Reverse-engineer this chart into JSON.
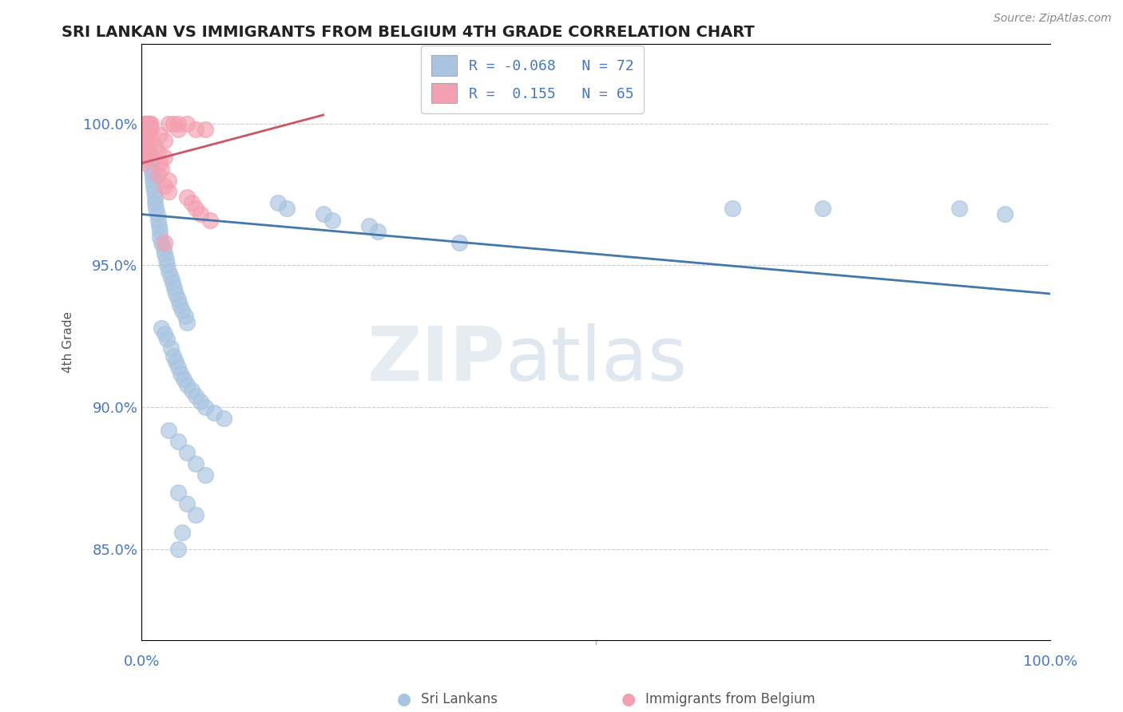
{
  "title": "SRI LANKAN VS IMMIGRANTS FROM BELGIUM 4TH GRADE CORRELATION CHART",
  "source": "Source: ZipAtlas.com",
  "ylabel": "4th Grade",
  "ytick_labels": [
    "85.0%",
    "90.0%",
    "95.0%",
    "100.0%"
  ],
  "ytick_values": [
    0.85,
    0.9,
    0.95,
    1.0
  ],
  "xlim": [
    0.0,
    1.0
  ],
  "ylim": [
    0.818,
    1.028
  ],
  "blue_color": "#a8c4e0",
  "pink_color": "#f4a0b0",
  "blue_line_color": "#4477aa",
  "pink_line_color": "#cc5566",
  "watermark_zip": "ZIP",
  "watermark_atlas": "atlas",
  "title_color": "#222222",
  "axis_label_color": "#4477cc",
  "blue_scatter": [
    [
      0.005,
      0.998
    ],
    [
      0.005,
      0.995
    ],
    [
      0.007,
      0.993
    ],
    [
      0.008,
      0.991
    ],
    [
      0.009,
      0.989
    ],
    [
      0.01,
      0.987
    ],
    [
      0.01,
      0.985
    ],
    [
      0.011,
      0.983
    ],
    [
      0.012,
      0.982
    ],
    [
      0.012,
      0.98
    ],
    [
      0.013,
      0.978
    ],
    [
      0.014,
      0.976
    ],
    [
      0.015,
      0.974
    ],
    [
      0.015,
      0.972
    ],
    [
      0.016,
      0.97
    ],
    [
      0.017,
      0.968
    ],
    [
      0.018,
      0.966
    ],
    [
      0.019,
      0.964
    ],
    [
      0.02,
      0.962
    ],
    [
      0.02,
      0.96
    ],
    [
      0.022,
      0.958
    ],
    [
      0.024,
      0.956
    ],
    [
      0.025,
      0.954
    ],
    [
      0.027,
      0.952
    ],
    [
      0.028,
      0.95
    ],
    [
      0.03,
      0.948
    ],
    [
      0.032,
      0.946
    ],
    [
      0.034,
      0.944
    ],
    [
      0.036,
      0.942
    ],
    [
      0.038,
      0.94
    ],
    [
      0.04,
      0.938
    ],
    [
      0.042,
      0.936
    ],
    [
      0.045,
      0.934
    ],
    [
      0.048,
      0.932
    ],
    [
      0.05,
      0.93
    ],
    [
      0.022,
      0.928
    ],
    [
      0.025,
      0.926
    ],
    [
      0.028,
      0.924
    ],
    [
      0.032,
      0.921
    ],
    [
      0.035,
      0.918
    ],
    [
      0.038,
      0.916
    ],
    [
      0.04,
      0.914
    ],
    [
      0.043,
      0.912
    ],
    [
      0.046,
      0.91
    ],
    [
      0.05,
      0.908
    ],
    [
      0.055,
      0.906
    ],
    [
      0.06,
      0.904
    ],
    [
      0.065,
      0.902
    ],
    [
      0.07,
      0.9
    ],
    [
      0.08,
      0.898
    ],
    [
      0.09,
      0.896
    ],
    [
      0.03,
      0.892
    ],
    [
      0.04,
      0.888
    ],
    [
      0.05,
      0.884
    ],
    [
      0.06,
      0.88
    ],
    [
      0.07,
      0.876
    ],
    [
      0.04,
      0.87
    ],
    [
      0.05,
      0.866
    ],
    [
      0.06,
      0.862
    ],
    [
      0.045,
      0.856
    ],
    [
      0.04,
      0.85
    ],
    [
      0.15,
      0.972
    ],
    [
      0.16,
      0.97
    ],
    [
      0.2,
      0.968
    ],
    [
      0.21,
      0.966
    ],
    [
      0.25,
      0.964
    ],
    [
      0.26,
      0.962
    ],
    [
      0.35,
      0.958
    ],
    [
      0.65,
      0.97
    ],
    [
      0.75,
      0.97
    ],
    [
      0.9,
      0.97
    ],
    [
      0.95,
      0.968
    ]
  ],
  "pink_scatter": [
    [
      0.003,
      1.0
    ],
    [
      0.004,
      1.0
    ],
    [
      0.005,
      1.0
    ],
    [
      0.006,
      1.0
    ],
    [
      0.007,
      1.0
    ],
    [
      0.008,
      1.0
    ],
    [
      0.009,
      1.0
    ],
    [
      0.01,
      1.0
    ],
    [
      0.003,
      0.998
    ],
    [
      0.004,
      0.998
    ],
    [
      0.005,
      0.998
    ],
    [
      0.006,
      0.998
    ],
    [
      0.007,
      0.998
    ],
    [
      0.008,
      0.998
    ],
    [
      0.009,
      0.998
    ],
    [
      0.01,
      0.998
    ],
    [
      0.003,
      0.996
    ],
    [
      0.004,
      0.996
    ],
    [
      0.005,
      0.996
    ],
    [
      0.006,
      0.996
    ],
    [
      0.007,
      0.996
    ],
    [
      0.008,
      0.996
    ],
    [
      0.003,
      0.994
    ],
    [
      0.004,
      0.994
    ],
    [
      0.005,
      0.994
    ],
    [
      0.006,
      0.994
    ],
    [
      0.003,
      0.992
    ],
    [
      0.004,
      0.992
    ],
    [
      0.005,
      0.992
    ],
    [
      0.003,
      0.99
    ],
    [
      0.004,
      0.99
    ],
    [
      0.003,
      0.988
    ],
    [
      0.004,
      0.988
    ],
    [
      0.003,
      0.986
    ],
    [
      0.03,
      1.0
    ],
    [
      0.035,
      1.0
    ],
    [
      0.04,
      1.0
    ],
    [
      0.04,
      0.998
    ],
    [
      0.05,
      1.0
    ],
    [
      0.06,
      0.998
    ],
    [
      0.07,
      0.998
    ],
    [
      0.02,
      0.996
    ],
    [
      0.025,
      0.994
    ],
    [
      0.015,
      0.992
    ],
    [
      0.018,
      0.99
    ],
    [
      0.025,
      0.988
    ],
    [
      0.02,
      0.986
    ],
    [
      0.022,
      0.984
    ],
    [
      0.018,
      0.982
    ],
    [
      0.03,
      0.98
    ],
    [
      0.025,
      0.978
    ],
    [
      0.03,
      0.976
    ],
    [
      0.05,
      0.974
    ],
    [
      0.055,
      0.972
    ],
    [
      0.06,
      0.97
    ],
    [
      0.065,
      0.968
    ],
    [
      0.025,
      0.958
    ],
    [
      0.075,
      0.966
    ]
  ],
  "blue_line_x": [
    0.0,
    1.0
  ],
  "blue_line_y": [
    0.968,
    0.94
  ],
  "pink_line_x": [
    0.0,
    0.2
  ],
  "pink_line_y": [
    0.986,
    1.003
  ]
}
